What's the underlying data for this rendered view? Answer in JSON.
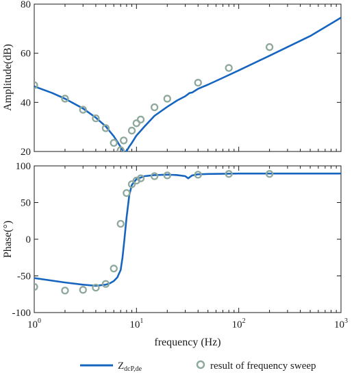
{
  "chart_data": [
    {
      "type": "line",
      "panel": "amplitude",
      "xscale": "log",
      "xlim": [
        1,
        1000
      ],
      "ylim": [
        20,
        80
      ],
      "xlabel": "",
      "ylabel": "Amplitude(dB)",
      "yticks": [
        20,
        40,
        60,
        80
      ],
      "grid": false,
      "series": [
        {
          "name": "Z_dcP,de",
          "kind": "line",
          "color": "#1565c0",
          "x": [
            1,
            1.5,
            2,
            3,
            4,
            5,
            6,
            6.5,
            7,
            7.5,
            8,
            8.5,
            9,
            10,
            12,
            15,
            20,
            25,
            30,
            33,
            35,
            40,
            50,
            70,
            100,
            200,
            500,
            1000
          ],
          "y": [
            46.5,
            43.8,
            41.5,
            37.5,
            33.8,
            30.2,
            26.2,
            24.0,
            21.8,
            19.8,
            20.2,
            22.0,
            23.5,
            26.5,
            30.2,
            34.5,
            38.2,
            40.8,
            42.5,
            43.8,
            44.0,
            45.5,
            47.2,
            50.0,
            53.0,
            59.0,
            67.0,
            74.5
          ]
        },
        {
          "name": "result of frequency sweep",
          "kind": "scatter",
          "color": "#8fa89c",
          "x": [
            1,
            2,
            3,
            4,
            5,
            6,
            7,
            7.5,
            9,
            10,
            11,
            15,
            20,
            40,
            80,
            200
          ],
          "y": [
            47,
            41.5,
            37,
            33.5,
            29.5,
            23.5,
            20.5,
            24.5,
            28.5,
            31.5,
            33,
            38,
            41.5,
            48,
            54,
            62.5
          ]
        }
      ]
    },
    {
      "type": "line",
      "panel": "phase",
      "xscale": "log",
      "xlim": [
        1,
        1000
      ],
      "ylim": [
        -100,
        100
      ],
      "xlabel": "frequency (Hz)",
      "ylabel": "Phase(°)",
      "yticks": [
        -100,
        -50,
        0,
        50,
        100
      ],
      "xticks": [
        {
          "value": 1,
          "base": "10",
          "exp": "0"
        },
        {
          "value": 10,
          "base": "10",
          "exp": "1"
        },
        {
          "value": 100,
          "base": "10",
          "exp": "2"
        },
        {
          "value": 1000,
          "base": "10",
          "exp": "3"
        }
      ],
      "grid": false,
      "series": [
        {
          "name": "Z_dcP,de",
          "kind": "line",
          "color": "#1565c0",
          "x": [
            1,
            2,
            3,
            4,
            5,
            5.5,
            6,
            6.5,
            7,
            7.3,
            7.6,
            8,
            8.5,
            9,
            10,
            12,
            15,
            20,
            25,
            30,
            32,
            35,
            40,
            50,
            100,
            1000
          ],
          "y": [
            -53,
            -59,
            -62,
            -63.5,
            -62,
            -60,
            -57,
            -52,
            -42,
            -25,
            -2,
            30,
            60,
            74,
            82,
            86,
            87.5,
            88,
            87.5,
            86,
            83,
            87,
            88.5,
            89,
            89.5,
            89.5
          ]
        },
        {
          "name": "result of frequency sweep",
          "kind": "scatter",
          "color": "#8fa89c",
          "x": [
            1,
            2,
            3,
            4,
            5,
            6,
            7,
            8,
            9,
            10,
            11,
            15,
            20,
            40,
            80,
            200
          ],
          "y": [
            -65,
            -70,
            -69,
            -66,
            -61,
            -40,
            21,
            63,
            75,
            80,
            83,
            86,
            87,
            88,
            89,
            89
          ]
        }
      ]
    }
  ],
  "legend": {
    "line_label_main": "Z",
    "line_label_sub": "dcP,de",
    "marker_label": "result of frequency sweep"
  }
}
